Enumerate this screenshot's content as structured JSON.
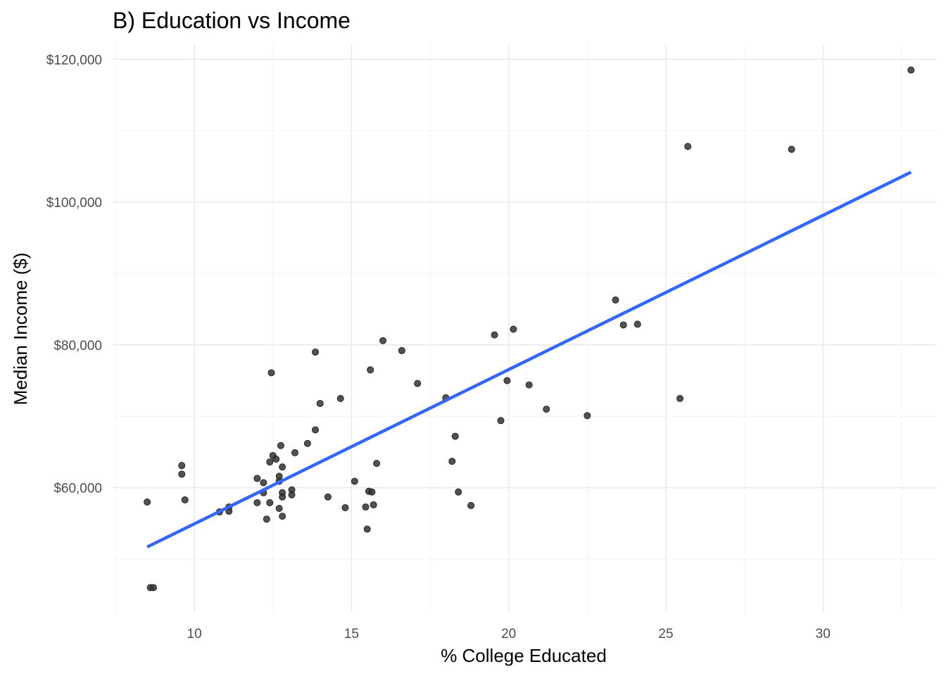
{
  "chart_data": {
    "type": "scatter",
    "title": "B) Education vs Income",
    "xlabel": "% College Educated",
    "ylabel": "Median Income ($)",
    "xlim": [
      7.4,
      33.6
    ],
    "ylim": [
      42500,
      122200
    ],
    "x_ticks": [
      10,
      15,
      20,
      25,
      30
    ],
    "x_tick_labels": [
      "10",
      "15",
      "20",
      "25",
      "30"
    ],
    "y_ticks": [
      60000,
      80000,
      100000,
      120000
    ],
    "y_tick_labels": [
      "$60,000",
      "$80,000",
      "$100,000",
      "$120,000"
    ],
    "x_minor_ticks": [
      7.5,
      12.5,
      17.5,
      22.5,
      27.5,
      32.5
    ],
    "y_minor_ticks": [
      50000,
      70000,
      90000,
      110000
    ],
    "grid": true,
    "points": [
      [
        8.5,
        58000
      ],
      [
        8.6,
        46000
      ],
      [
        8.7,
        46000
      ],
      [
        9.6,
        63100
      ],
      [
        9.6,
        61900
      ],
      [
        9.7,
        58300
      ],
      [
        10.8,
        56600
      ],
      [
        11.1,
        57300
      ],
      [
        11.1,
        56700
      ],
      [
        12.0,
        61300
      ],
      [
        12.0,
        57900
      ],
      [
        12.2,
        60700
      ],
      [
        12.2,
        59300
      ],
      [
        12.3,
        55600
      ],
      [
        12.4,
        63600
      ],
      [
        12.4,
        57900
      ],
      [
        12.45,
        76100
      ],
      [
        12.5,
        64500
      ],
      [
        12.6,
        64000
      ],
      [
        12.7,
        61600
      ],
      [
        12.7,
        60900
      ],
      [
        12.7,
        57100
      ],
      [
        12.75,
        65900
      ],
      [
        12.8,
        62900
      ],
      [
        12.8,
        59300
      ],
      [
        12.8,
        58700
      ],
      [
        12.8,
        56000
      ],
      [
        13.1,
        59700
      ],
      [
        13.1,
        59000
      ],
      [
        13.2,
        64900
      ],
      [
        13.6,
        66200
      ],
      [
        13.85,
        79000
      ],
      [
        13.85,
        68100
      ],
      [
        14.0,
        71800
      ],
      [
        14.25,
        58700
      ],
      [
        14.65,
        72500
      ],
      [
        14.8,
        57200
      ],
      [
        15.1,
        60900
      ],
      [
        15.45,
        57300
      ],
      [
        15.5,
        54200
      ],
      [
        15.55,
        59500
      ],
      [
        15.6,
        76500
      ],
      [
        15.65,
        59400
      ],
      [
        15.7,
        57600
      ],
      [
        15.8,
        63400
      ],
      [
        16.0,
        80600
      ],
      [
        16.6,
        79200
      ],
      [
        17.1,
        74600
      ],
      [
        18.0,
        72600
      ],
      [
        18.2,
        63700
      ],
      [
        18.3,
        67200
      ],
      [
        18.4,
        59400
      ],
      [
        18.8,
        57500
      ],
      [
        19.55,
        81400
      ],
      [
        19.75,
        69400
      ],
      [
        19.95,
        75000
      ],
      [
        20.15,
        82200
      ],
      [
        20.65,
        74400
      ],
      [
        21.2,
        71000
      ],
      [
        22.5,
        70100
      ],
      [
        23.4,
        86300
      ],
      [
        23.65,
        82800
      ],
      [
        24.1,
        82900
      ],
      [
        25.45,
        72500
      ],
      [
        25.7,
        107800
      ],
      [
        29.0,
        107400
      ],
      [
        32.8,
        118500
      ]
    ],
    "trend_line": {
      "type": "linear",
      "x": [
        8.5,
        32.8
      ],
      "y": [
        51700,
        104200
      ]
    },
    "colors": {
      "points": "#333333",
      "trend_line": "#3366ff",
      "grid": "#ebebeb"
    }
  }
}
